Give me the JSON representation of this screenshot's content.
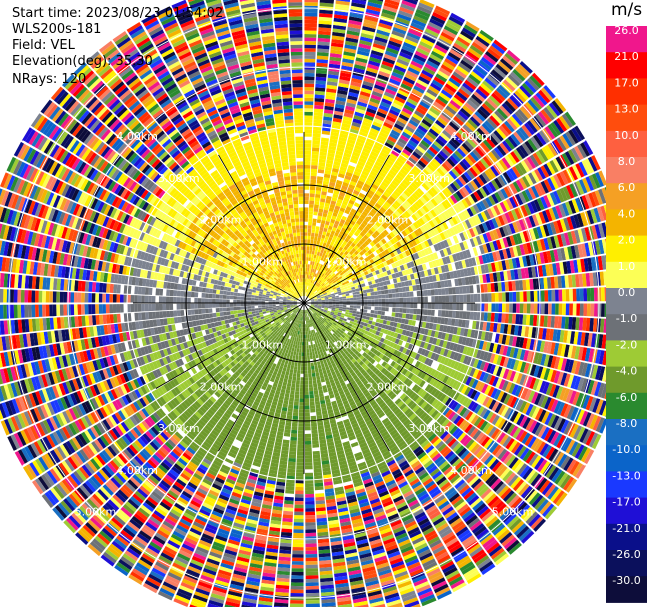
{
  "info": {
    "start_time": "Start time: 2023/08/23 01:54:02",
    "instrument": "WLS200s-181",
    "field": "Field: VEL",
    "elevation": "Elevation(deg): 35.30",
    "nrays": "NRays: 120"
  },
  "colorbar": {
    "unit": "m/s",
    "levels": [
      {
        "label": "26.0",
        "color": "#f0178c"
      },
      {
        "label": "21.0",
        "color": "#ff0000"
      },
      {
        "label": "17.0",
        "color": "#ff2f00"
      },
      {
        "label": "13.0",
        "color": "#ff4d0d"
      },
      {
        "label": "10.0",
        "color": "#fe6040"
      },
      {
        "label": "8.0",
        "color": "#f97f64"
      },
      {
        "label": "6.0",
        "color": "#f5a024"
      },
      {
        "label": "4.0",
        "color": "#f4b400"
      },
      {
        "label": "2.0",
        "color": "#ffef00"
      },
      {
        "label": "1.0",
        "color": "#fcff56"
      },
      {
        "label": "0.0",
        "color": "#7d8390"
      },
      {
        "label": "-1.0",
        "color": "#6d7177"
      },
      {
        "label": "-2.0",
        "color": "#9ecb35"
      },
      {
        "label": "-4.0",
        "color": "#6f9a2c"
      },
      {
        "label": "-6.0",
        "color": "#2a8a2f"
      },
      {
        "label": "-8.0",
        "color": "#1a6fc2"
      },
      {
        "label": "-10.0",
        "color": "#0b64c9"
      },
      {
        "label": "-13.0",
        "color": "#1a39ff"
      },
      {
        "label": "-17.0",
        "color": "#1f0fd6"
      },
      {
        "label": "-21.0",
        "color": "#0a0f8a"
      },
      {
        "label": "-26.0",
        "color": "#0b105c"
      },
      {
        "label": "-30.0",
        "color": "#0d0d3a"
      }
    ]
  },
  "chart_data": {
    "type": "heatmap",
    "projection": "polar-ppi",
    "field": "VEL",
    "units": "m/s",
    "n_rays": 120,
    "range_rings_km": [
      1.0,
      2.0,
      3.0,
      4.0,
      5.0
    ],
    "ring_labels": [
      {
        "text": "1.00km",
        "angle": 45
      },
      {
        "text": "1.00km",
        "angle": 135
      },
      {
        "text": "1.00km",
        "angle": 225
      },
      {
        "text": "1.00km",
        "angle": 315
      },
      {
        "text": "2.00km",
        "angle": 45
      },
      {
        "text": "2.00km",
        "angle": 135
      },
      {
        "text": "2.00km",
        "angle": 225
      },
      {
        "text": "2.00km",
        "angle": 315
      },
      {
        "text": "3.00km",
        "angle": 45
      },
      {
        "text": "3.00km",
        "angle": 135
      },
      {
        "text": "3.00km",
        "angle": 225
      },
      {
        "text": "3.00km",
        "angle": 315
      },
      {
        "text": "4.00km",
        "angle": 45
      },
      {
        "text": "4.00km",
        "angle": 135
      },
      {
        "text": "4.00km",
        "angle": 225
      },
      {
        "text": "4.00km",
        "angle": 315
      },
      {
        "text": "5.00km",
        "angle": 135
      },
      {
        "text": "5.00km",
        "angle": 225
      }
    ],
    "spoke_angles_deg": [
      0,
      30,
      60,
      90,
      120,
      150,
      180,
      210,
      240,
      270,
      300,
      330
    ],
    "max_range_km": 5.5,
    "pattern_notes": "Positive velocities (yellow/orange) to the north, near-zero (gray) east and west, negative velocities (green) to the south; noise beyond about 3 km."
  }
}
